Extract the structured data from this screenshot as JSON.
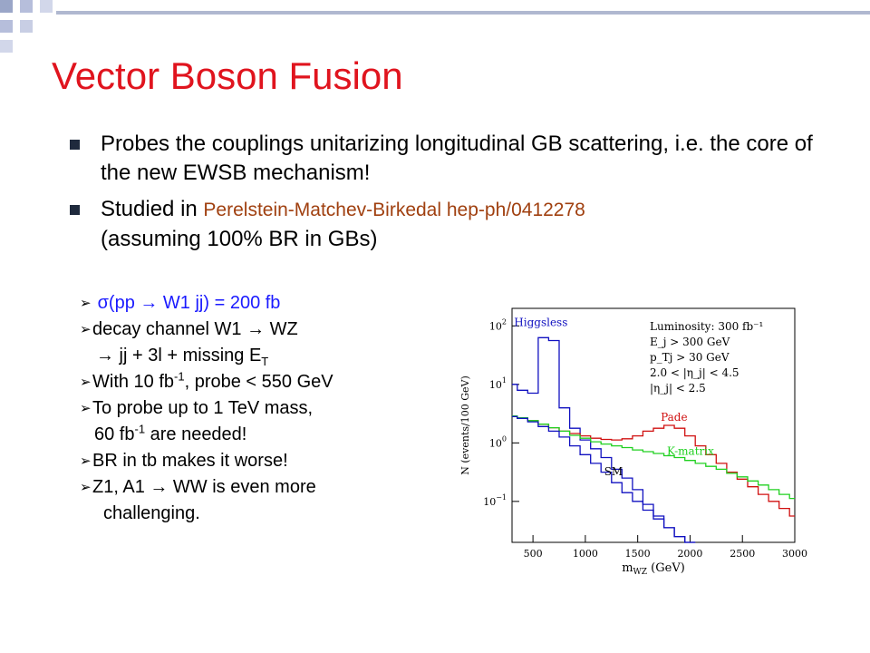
{
  "slide": {
    "title": "Vector Boson Fusion",
    "bullets": [
      {
        "text": "Probes the couplings unitarizing longitudinal GB scattering, i.e. the core of the new EWSB mechanism!"
      },
      {
        "lead": "Studied in ",
        "ref": "Perelstein-Matchev-Birkedal hep-ph/0412278",
        "tail": "(assuming 100% BR in GBs)"
      }
    ],
    "sub": {
      "sigma": "σ",
      "sigma_rest": "(pp → W1 jj) = 200 fb",
      "decay": "decay channel W1 → WZ",
      "decay_cont": "→ jj + 3l + missing E",
      "decay_cont_sub": "T",
      "with_a": "With 10 fb",
      "with_sup": "-1",
      "with_b": ", probe < 550 GeV",
      "probe": "To probe up to 1 TeV mass,",
      "probe_cont_a": "60 fb",
      "probe_cont_sup": "-1",
      "probe_cont_b": " are needed!",
      "br": "BR in tb makes it worse!",
      "z1": "Z1, A1 → WW is even more",
      "z1_cont": "challenging."
    }
  },
  "chart_data": {
    "type": "line",
    "xlabel": "m",
    "xlabel_sub": "WZ",
    "xlabel_unit": " (GeV)",
    "ylabel": "N (events/100 GeV)",
    "xlim": [
      300,
      3000
    ],
    "ylim_log10": [
      -1.7,
      2.3
    ],
    "x_ticks": [
      "500",
      "1000",
      "1500",
      "2000",
      "2500",
      "3000"
    ],
    "x_tick_values": [
      500,
      1000,
      1500,
      2000,
      2500,
      3000
    ],
    "y_ticks": [
      {
        "base": "10",
        "exp": "2",
        "log": 2
      },
      {
        "base": "10",
        "exp": "1",
        "log": 1
      },
      {
        "base": "10",
        "exp": "0",
        "log": 0
      },
      {
        "base": "10",
        "exp": "−1",
        "log": -1
      }
    ],
    "cuts": [
      "Luminosity: 300 fb⁻¹",
      "E_j > 300 GeV",
      "p_Tj > 30 GeV",
      "2.0 < |η_j| < 4.5",
      "|η_j| < 2.5"
    ],
    "series": [
      {
        "name": "Higgsless",
        "color": "#1010c0",
        "values": [
          [
            300,
            1.0
          ],
          [
            400,
            0.9
          ],
          [
            500,
            0.85
          ],
          [
            600,
            1.8
          ],
          [
            700,
            1.75
          ],
          [
            800,
            0.6
          ],
          [
            900,
            0.25
          ],
          [
            1000,
            0.05
          ],
          [
            1100,
            -0.1
          ],
          [
            1200,
            -0.25
          ],
          [
            1300,
            -0.45
          ],
          [
            1400,
            -0.6
          ],
          [
            1500,
            -0.8
          ],
          [
            1600,
            -1.05
          ],
          [
            1700,
            -1.25
          ],
          [
            1800,
            -1.45
          ],
          [
            1900,
            -1.6
          ],
          [
            2000,
            -1.7
          ]
        ]
      },
      {
        "name": "Pade",
        "color": "#d01010",
        "values": [
          [
            300,
            0.45
          ],
          [
            400,
            0.42
          ],
          [
            500,
            0.38
          ],
          [
            600,
            0.32
          ],
          [
            700,
            0.26
          ],
          [
            800,
            0.2
          ],
          [
            900,
            0.16
          ],
          [
            1000,
            0.12
          ],
          [
            1100,
            0.08
          ],
          [
            1200,
            0.06
          ],
          [
            1300,
            0.05
          ],
          [
            1400,
            0.07
          ],
          [
            1500,
            0.12
          ],
          [
            1600,
            0.2
          ],
          [
            1700,
            0.25
          ],
          [
            1800,
            0.3
          ],
          [
            1900,
            0.25
          ],
          [
            2000,
            0.12
          ],
          [
            2100,
            -0.05
          ],
          [
            2200,
            -0.2
          ],
          [
            2300,
            -0.35
          ],
          [
            2400,
            -0.5
          ],
          [
            2500,
            -0.62
          ],
          [
            2600,
            -0.75
          ],
          [
            2700,
            -0.88
          ],
          [
            2800,
            -1.0
          ],
          [
            2900,
            -1.12
          ],
          [
            3000,
            -1.25
          ]
        ]
      },
      {
        "name": "K-matrix",
        "color": "#20d020",
        "values": [
          [
            300,
            0.46
          ],
          [
            400,
            0.43
          ],
          [
            500,
            0.38
          ],
          [
            600,
            0.32
          ],
          [
            700,
            0.26
          ],
          [
            800,
            0.2
          ],
          [
            900,
            0.13
          ],
          [
            1000,
            0.08
          ],
          [
            1100,
            0.02
          ],
          [
            1200,
            -0.02
          ],
          [
            1300,
            -0.05
          ],
          [
            1400,
            -0.08
          ],
          [
            1500,
            -0.12
          ],
          [
            1600,
            -0.15
          ],
          [
            1700,
            -0.18
          ],
          [
            1800,
            -0.22
          ],
          [
            1900,
            -0.25
          ],
          [
            2000,
            -0.3
          ],
          [
            2100,
            -0.35
          ],
          [
            2200,
            -0.4
          ],
          [
            2300,
            -0.45
          ],
          [
            2400,
            -0.52
          ],
          [
            2500,
            -0.58
          ],
          [
            2600,
            -0.65
          ],
          [
            2700,
            -0.72
          ],
          [
            2800,
            -0.8
          ],
          [
            2900,
            -0.88
          ],
          [
            3000,
            -0.95
          ]
        ]
      },
      {
        "name": "SM",
        "color": "#1010c0",
        "values": [
          [
            300,
            0.45
          ],
          [
            400,
            0.42
          ],
          [
            500,
            0.36
          ],
          [
            600,
            0.28
          ],
          [
            700,
            0.2
          ],
          [
            800,
            0.1
          ],
          [
            900,
            -0.05
          ],
          [
            1000,
            -0.2
          ],
          [
            1100,
            -0.35
          ],
          [
            1200,
            -0.5
          ],
          [
            1300,
            -0.68
          ],
          [
            1400,
            -0.85
          ],
          [
            1500,
            -1.0
          ],
          [
            1600,
            -1.15
          ],
          [
            1700,
            -1.3
          ],
          [
            1800,
            -1.45
          ],
          [
            1900,
            -1.6
          ],
          [
            2000,
            -1.7
          ]
        ]
      }
    ],
    "series_labels": [
      {
        "text": "Higgsless",
        "color": "#1010c0",
        "x": 320,
        "y": 2.0
      },
      {
        "text": "Pade",
        "color": "#d01010",
        "x": 1720,
        "y": 0.38
      },
      {
        "text": "K-matrix",
        "color": "#20d020",
        "x": 1780,
        "y": -0.2
      },
      {
        "text": "SM",
        "color": "#000000",
        "x": 1180,
        "y": -0.55
      }
    ]
  }
}
